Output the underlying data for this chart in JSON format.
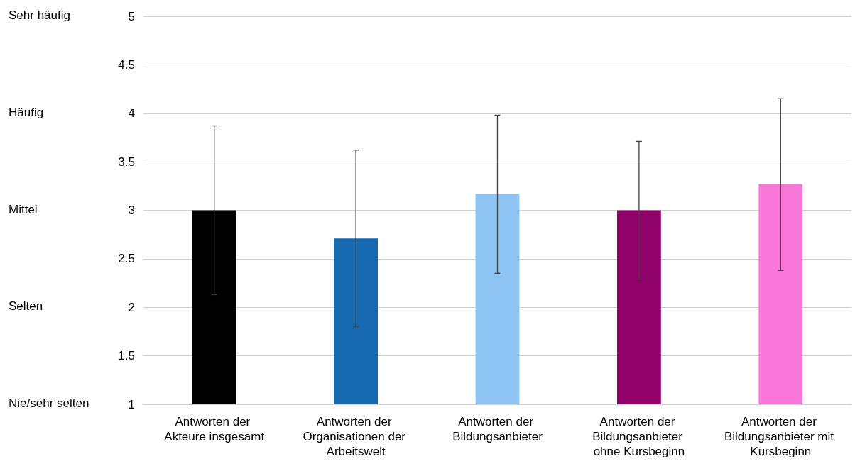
{
  "chart_data": {
    "type": "bar",
    "categories": [
      "Antworten der Akteure insgesamt",
      "Antworten der Organisationen der Arbeitswelt",
      "Antworten der Bildungsanbieter",
      "Antworten der Bildungsanbieter ohne Kursbeginn",
      "Antworten der Bildungsanbieter mit Kursbeginn"
    ],
    "values": [
      3.0,
      2.71,
      3.17,
      3.0,
      3.27
    ],
    "colors": [
      "#000000",
      "#1569b0",
      "#8ec4f3",
      "#8f0068",
      "#f877d8"
    ],
    "errors": [
      [
        2.13,
        3.87
      ],
      [
        1.8,
        3.62
      ],
      [
        2.35,
        3.98
      ],
      [
        2.29,
        3.71
      ],
      [
        2.38,
        4.15
      ]
    ],
    "ylim": [
      1,
      5
    ],
    "yticks": [
      1,
      1.5,
      2,
      2.5,
      3,
      3.5,
      4,
      4.5,
      5
    ],
    "annotations": [
      "Nie/sehr selten",
      "Selten",
      "Mittel",
      "Häufig",
      "Sehr häufig"
    ],
    "grid": "y"
  }
}
